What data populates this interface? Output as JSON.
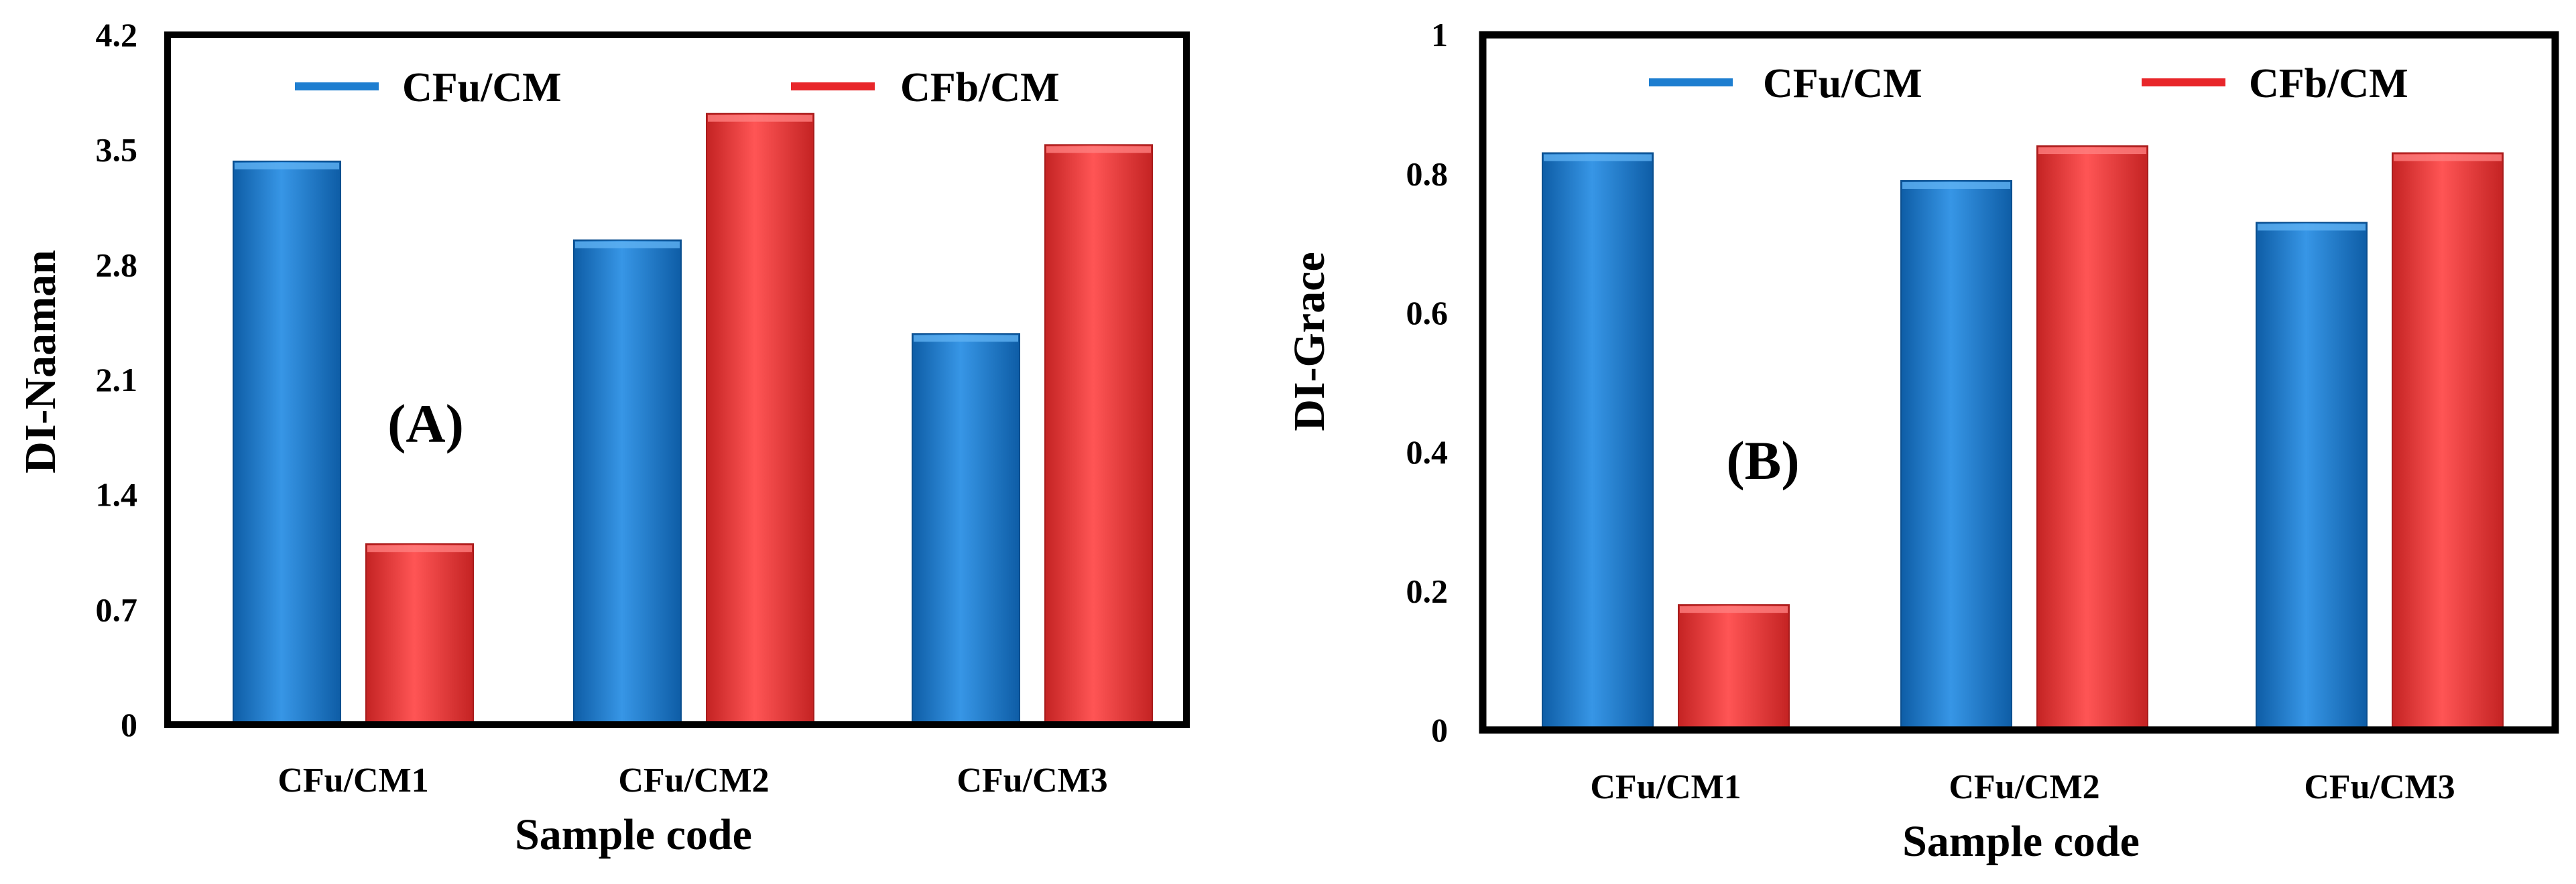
{
  "colors": {
    "series_blue": "#1E7ED0",
    "series_red": "#F03A3A",
    "axis": "#000000",
    "background": "#FFFFFF"
  },
  "chart_data": [
    {
      "type": "bar",
      "panel_label": "(A)",
      "title": "",
      "xlabel": "Sample code",
      "ylabel": "DI-Naaman",
      "categories": [
        "CFu/CM1",
        "CFu/CM2",
        "CFu/CM3"
      ],
      "yticks": [
        "0",
        "0.7",
        "1.4",
        "2.1",
        "2.8",
        "3.5",
        "4.2"
      ],
      "ylim": [
        0,
        4.2
      ],
      "grid": false,
      "legend_position": "top",
      "series": [
        {
          "name": "CFu/CM",
          "values": [
            3.43,
            2.95,
            2.38
          ]
        },
        {
          "name": "CFb/CM",
          "values": [
            1.1,
            3.72,
            3.53
          ]
        }
      ]
    },
    {
      "type": "bar",
      "panel_label": "(B)",
      "title": "",
      "xlabel": "Sample code",
      "ylabel": "DI-Grace",
      "categories": [
        "CFu/CM1",
        "CFu/CM2",
        "CFu/CM3"
      ],
      "yticks": [
        "0",
        "0.2",
        "0.4",
        "0.6",
        "0.8",
        "1"
      ],
      "ylim": [
        0,
        1
      ],
      "grid": false,
      "legend_position": "top",
      "series": [
        {
          "name": "CFu/CM",
          "values": [
            0.83,
            0.79,
            0.73
          ]
        },
        {
          "name": "CFb/CM",
          "values": [
            0.18,
            0.84,
            0.83
          ]
        }
      ]
    }
  ]
}
